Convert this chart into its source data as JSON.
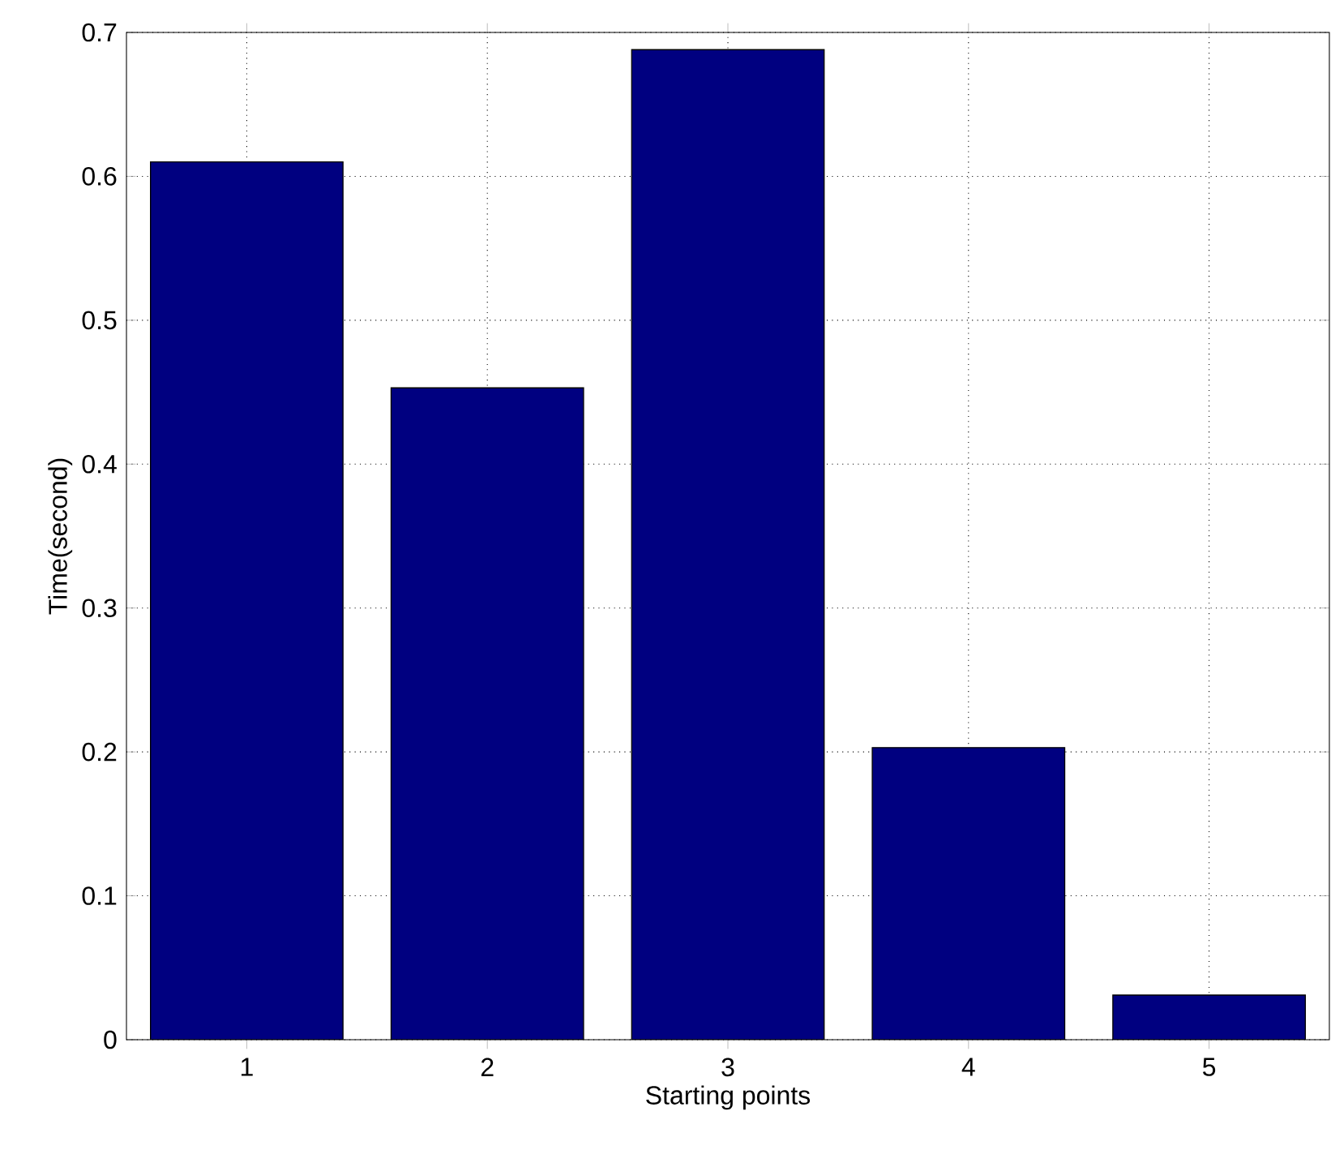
{
  "chart_data": {
    "type": "bar",
    "xlabel": "Starting points",
    "ylabel": "Time(second)",
    "categories": [
      "1",
      "2",
      "3",
      "4",
      "5"
    ],
    "values": [
      0.61,
      0.453,
      0.688,
      0.203,
      0.031
    ],
    "color": "#000080",
    "ylim": [
      0,
      0.7
    ],
    "yticks": [
      0,
      0.1,
      0.2,
      0.3,
      0.4,
      0.5,
      0.6,
      0.7
    ],
    "grid": true
  }
}
